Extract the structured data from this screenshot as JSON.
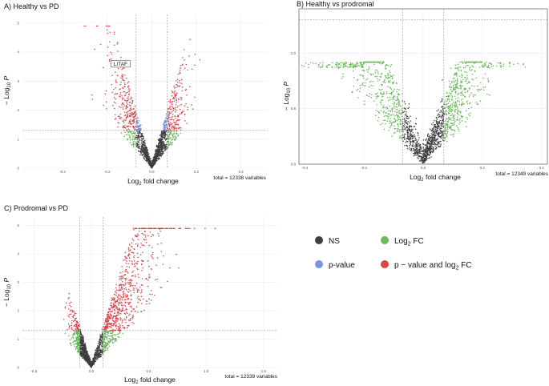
{
  "chart_data": [
    {
      "type": "scatter",
      "title": "A) Healthy vs PD",
      "xlabel": "Log2 fold change",
      "ylabel": "-Log10 P",
      "xlim": [
        -0.58,
        0.52
      ],
      "ylim": [
        0,
        5.3
      ],
      "xticks": [
        -0.4,
        -0.2,
        0.0,
        0.2,
        0.4
      ],
      "xtick_labels": [
        "-0.4",
        "-0.2",
        "0.0",
        "0.2",
        "0.4"
      ],
      "yticks": [
        0,
        1,
        2,
        3,
        4,
        5
      ],
      "ytick_labels": [
        "0",
        "1",
        "2",
        "3",
        "4",
        "5"
      ],
      "fc_cutoff": 0.07,
      "p_cutoff": 1.3,
      "total_variables": 12338,
      "total_label": "total = 12338 variables",
      "n_points_rendered": 1700,
      "spread_neg": 0.09,
      "spread_pos": 0.07,
      "slope": 25,
      "annotations": [
        {
          "text": "LITAF",
          "x": -0.14,
          "y": 3.55
        }
      ],
      "grid": true,
      "legend": "shared"
    },
    {
      "type": "scatter",
      "title": "B) Healthy vs prodromal",
      "xlabel": "Log2 fold change",
      "ylabel": "-Log10 P",
      "xlim": [
        -0.42,
        0.42
      ],
      "ylim": [
        0,
        1.4
      ],
      "xticks": [
        -0.4,
        -0.2,
        0.0,
        0.2,
        0.4
      ],
      "xtick_labels": [
        "-0.4",
        "-0.2",
        "0.0",
        "0.2",
        "0.4"
      ],
      "yticks": [
        0,
        0.5,
        1.0
      ],
      "ytick_labels": [
        "0.0",
        "0.5",
        "1.0"
      ],
      "fc_cutoff": 0.07,
      "p_cutoff": 1.3,
      "total_variables": 12349,
      "total_label": "total = 12349 variables",
      "n_points_rendered": 1900,
      "spread_neg": 0.14,
      "spread_pos": 0.1,
      "slope": 6.5,
      "ymax_cap": 0.92,
      "grid": true,
      "legend": "shared"
    },
    {
      "type": "scatter",
      "title": "C) Prodromal vs PD",
      "xlabel": "Log2 fold change",
      "ylabel": "-Log10 P",
      "xlim": [
        -0.6,
        1.62
      ],
      "ylim": [
        0,
        5.3
      ],
      "xticks": [
        -0.5,
        0.0,
        0.5,
        1.0,
        1.5
      ],
      "xtick_labels": [
        "-0.5",
        "0.0",
        "0.5",
        "1.0",
        "1.5"
      ],
      "yticks": [
        0,
        1,
        2,
        3,
        4,
        5
      ],
      "ytick_labels": [
        "0",
        "1",
        "2",
        "3",
        "4",
        "5"
      ],
      "fc_cutoff": 0.1,
      "p_cutoff": 1.3,
      "total_variables": 12339,
      "total_label": "total = 12339 variables",
      "n_points_rendered": 2200,
      "spread_neg": 0.08,
      "spread_pos": 0.3,
      "slope": 12,
      "grid": true,
      "legend": "shared"
    }
  ],
  "legend": {
    "items": [
      {
        "label": "NS",
        "color": "#3d3d3d"
      },
      {
        "label": "Log",
        "sub": "2",
        "tail": " FC",
        "color": "#6abb5a"
      },
      {
        "label": "p-value",
        "color": "#7b93e2"
      },
      {
        "label": "p − value and log",
        "sub": "2",
        "tail": " FC",
        "color": "#e0434a"
      }
    ]
  },
  "colors": {
    "ns": "#3d3d3d",
    "fc": "#5fb54f",
    "p": "#6f8be0",
    "both": "#e03a40",
    "grid": "#ececec",
    "cutoff": "#7a7a7a"
  }
}
